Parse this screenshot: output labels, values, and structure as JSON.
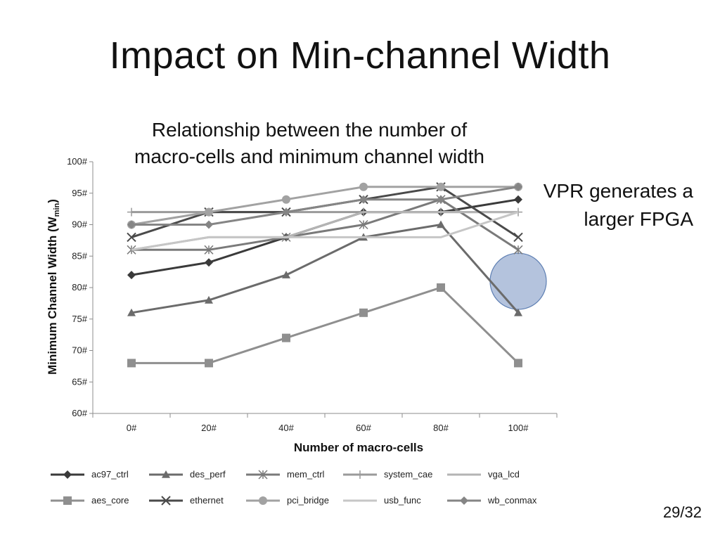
{
  "slide": {
    "title": "Impact on Min-channel Width",
    "callout_line1": "VPR generates a",
    "callout_line2": "larger FPGA",
    "page_number": "29/32"
  },
  "chart_data": {
    "type": "line",
    "title_line1": "Relationship between the number of",
    "title_line2": "macro-cells and minimum channel width",
    "xlabel": "Number of macro-cells",
    "ylabel": "Minimum Channel Width (W",
    "ylabel_sub": "min",
    "ylabel_close": ")",
    "categories": [
      "0#",
      "20#",
      "40#",
      "60#",
      "80#",
      "100#"
    ],
    "y_ticks": [
      "60#",
      "65#",
      "70#",
      "75#",
      "80#",
      "85#",
      "90#",
      "95#",
      "100#"
    ],
    "ylim": [
      60,
      100
    ],
    "grid": false,
    "legend_position": "bottom",
    "highlight": {
      "category_index": 5,
      "color": "#a7b9d7",
      "stroke": "#5e7fb3"
    },
    "series": [
      {
        "name": "ac97_ctrl",
        "values": [
          82,
          84,
          88,
          92,
          92,
          94
        ],
        "color": "#3a3a3a",
        "marker": "diamond"
      },
      {
        "name": "des_perf",
        "values": [
          76,
          78,
          82,
          88,
          90,
          76
        ],
        "color": "#6b6b6b",
        "marker": "triangle"
      },
      {
        "name": "mem_ctrl",
        "values": [
          86,
          86,
          88,
          90,
          94,
          86
        ],
        "color": "#7a7a7a",
        "marker": "star"
      },
      {
        "name": "system_cae",
        "values": [
          92,
          92,
          92,
          92,
          92,
          92
        ],
        "color": "#9a9a9a",
        "marker": "plus"
      },
      {
        "name": "vga_lcd",
        "values": [
          86,
          88,
          88,
          92,
          92,
          92
        ],
        "color": "#b4b4b4",
        "marker": "none"
      },
      {
        "name": "aes_core",
        "values": [
          68,
          68,
          72,
          76,
          80,
          68
        ],
        "color": "#8f8f8f",
        "marker": "square"
      },
      {
        "name": "ethernet",
        "values": [
          88,
          92,
          92,
          94,
          96,
          88
        ],
        "color": "#4a4a4a",
        "marker": "x"
      },
      {
        "name": "pci_bridge",
        "values": [
          90,
          92,
          94,
          96,
          96,
          96
        ],
        "color": "#a2a2a2",
        "marker": "circle"
      },
      {
        "name": "usb_func",
        "values": [
          86,
          88,
          88,
          88,
          88,
          92
        ],
        "color": "#c6c6c6",
        "marker": "none"
      },
      {
        "name": "wb_conmax",
        "values": [
          90,
          90,
          92,
          94,
          94,
          96
        ],
        "color": "#858585",
        "marker": "diamond"
      }
    ]
  }
}
